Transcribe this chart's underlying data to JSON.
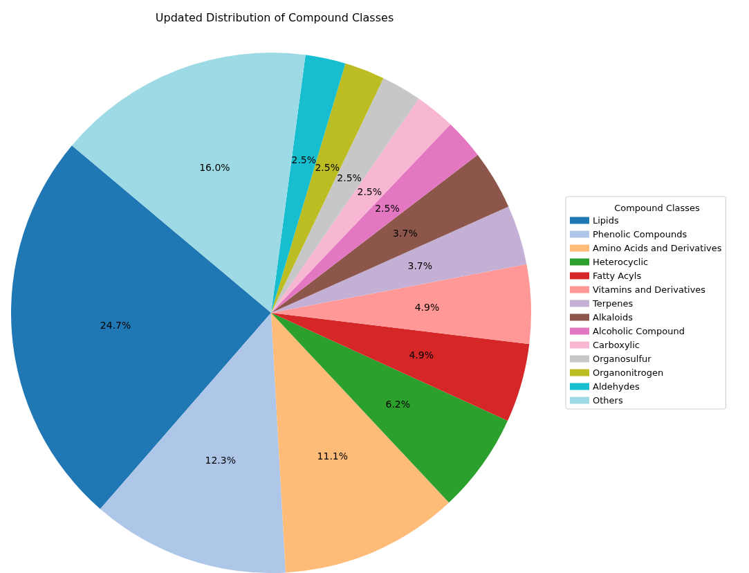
{
  "chart_data": {
    "type": "pie",
    "title": "Updated Distribution of Compound Classes",
    "legend_title": "Compound Classes",
    "legend": "right",
    "categories": [
      "Lipids",
      "Phenolic Compounds",
      "Amino Acids and Derivatives",
      "Heterocyclic",
      "Fatty Acyls",
      "Vitamins and Derivatives",
      "Terpenes",
      "Alkaloids",
      "Alcoholic Compound",
      "Carboxylic",
      "Organosulfur",
      "Organonitrogen",
      "Aldehydes",
      "Others"
    ],
    "values": [
      24.7,
      12.3,
      11.1,
      6.2,
      4.9,
      4.9,
      3.7,
      3.7,
      2.5,
      2.5,
      2.5,
      2.5,
      2.5,
      16.0
    ],
    "value_labels": [
      "24.7%",
      "12.3%",
      "11.1%",
      "6.2%",
      "4.9%",
      "4.9%",
      "3.7%",
      "3.7%",
      "2.5%",
      "2.5%",
      "2.5%",
      "2.5%",
      "2.5%",
      "16.0%"
    ],
    "colors": [
      "#1f77b4",
      "#aec7e8",
      "#ffbb78",
      "#2ca02c",
      "#d62728",
      "#ff9896",
      "#c5b0d5",
      "#8c564b",
      "#e377c2",
      "#f7b6d2",
      "#c7c7c7",
      "#bcbd22",
      "#17becf",
      "#9edae5"
    ]
  }
}
